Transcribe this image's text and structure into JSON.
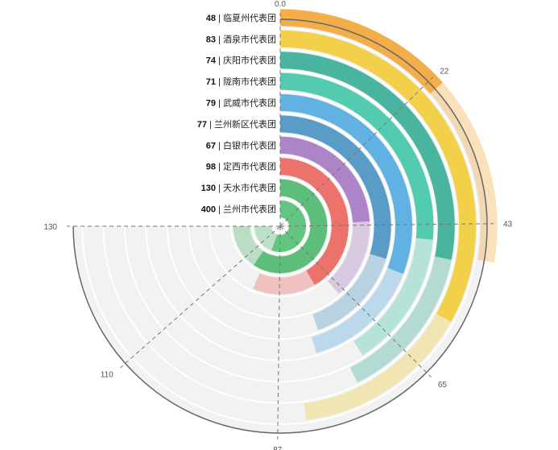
{
  "chart_data": {
    "type": "bar",
    "variant": "radial-bar",
    "title": "",
    "xlabel": "",
    "ylabel": "",
    "angle_axis": {
      "max": 130,
      "tick_labels": [
        {
          "value": 0,
          "label": "0.0"
        },
        {
          "value": 22,
          "label": "22"
        },
        {
          "value": 43,
          "label": "43"
        },
        {
          "value": 65,
          "label": "65"
        },
        {
          "value": 87,
          "label": "87"
        },
        {
          "value": 110,
          "label": "110"
        },
        {
          "value": 130,
          "label": "130"
        }
      ],
      "grid": true
    },
    "categories": [
      {
        "value_label": "400",
        "name": "兰州市代表团",
        "value": 400,
        "color": "#5ac37a"
      },
      {
        "value_label": "130",
        "name": "天水市代表团",
        "value": 130,
        "color": "#54b973"
      },
      {
        "value_label": "98",
        "name": "定西市代表团",
        "value": 98,
        "color": "#ea6b64"
      },
      {
        "value_label": "67",
        "name": "白银市代表团",
        "value": 67,
        "color": "#a97dc4"
      },
      {
        "value_label": "77",
        "name": "兰州新区代表团",
        "value": 77,
        "color": "#4f97c4"
      },
      {
        "value_label": "79",
        "name": "武威市代表团",
        "value": 79,
        "color": "#5aade2"
      },
      {
        "value_label": "71",
        "name": "陇南市代表团",
        "value": 71,
        "color": "#49c8ad"
      },
      {
        "value_label": "74",
        "name": "庆阳市代表团",
        "value": 74,
        "color": "#3fb09a"
      },
      {
        "value_label": "83",
        "name": "酒泉市代表团",
        "value": 83,
        "color": "#f2cd40"
      },
      {
        "value_label": "48",
        "name": "临夏州代表团",
        "value": 48,
        "color": "#f2aa40"
      }
    ],
    "colors": {
      "background_ring": "#f2f2f2",
      "axis_line": "#666666",
      "dashed_line": "#777777"
    }
  }
}
